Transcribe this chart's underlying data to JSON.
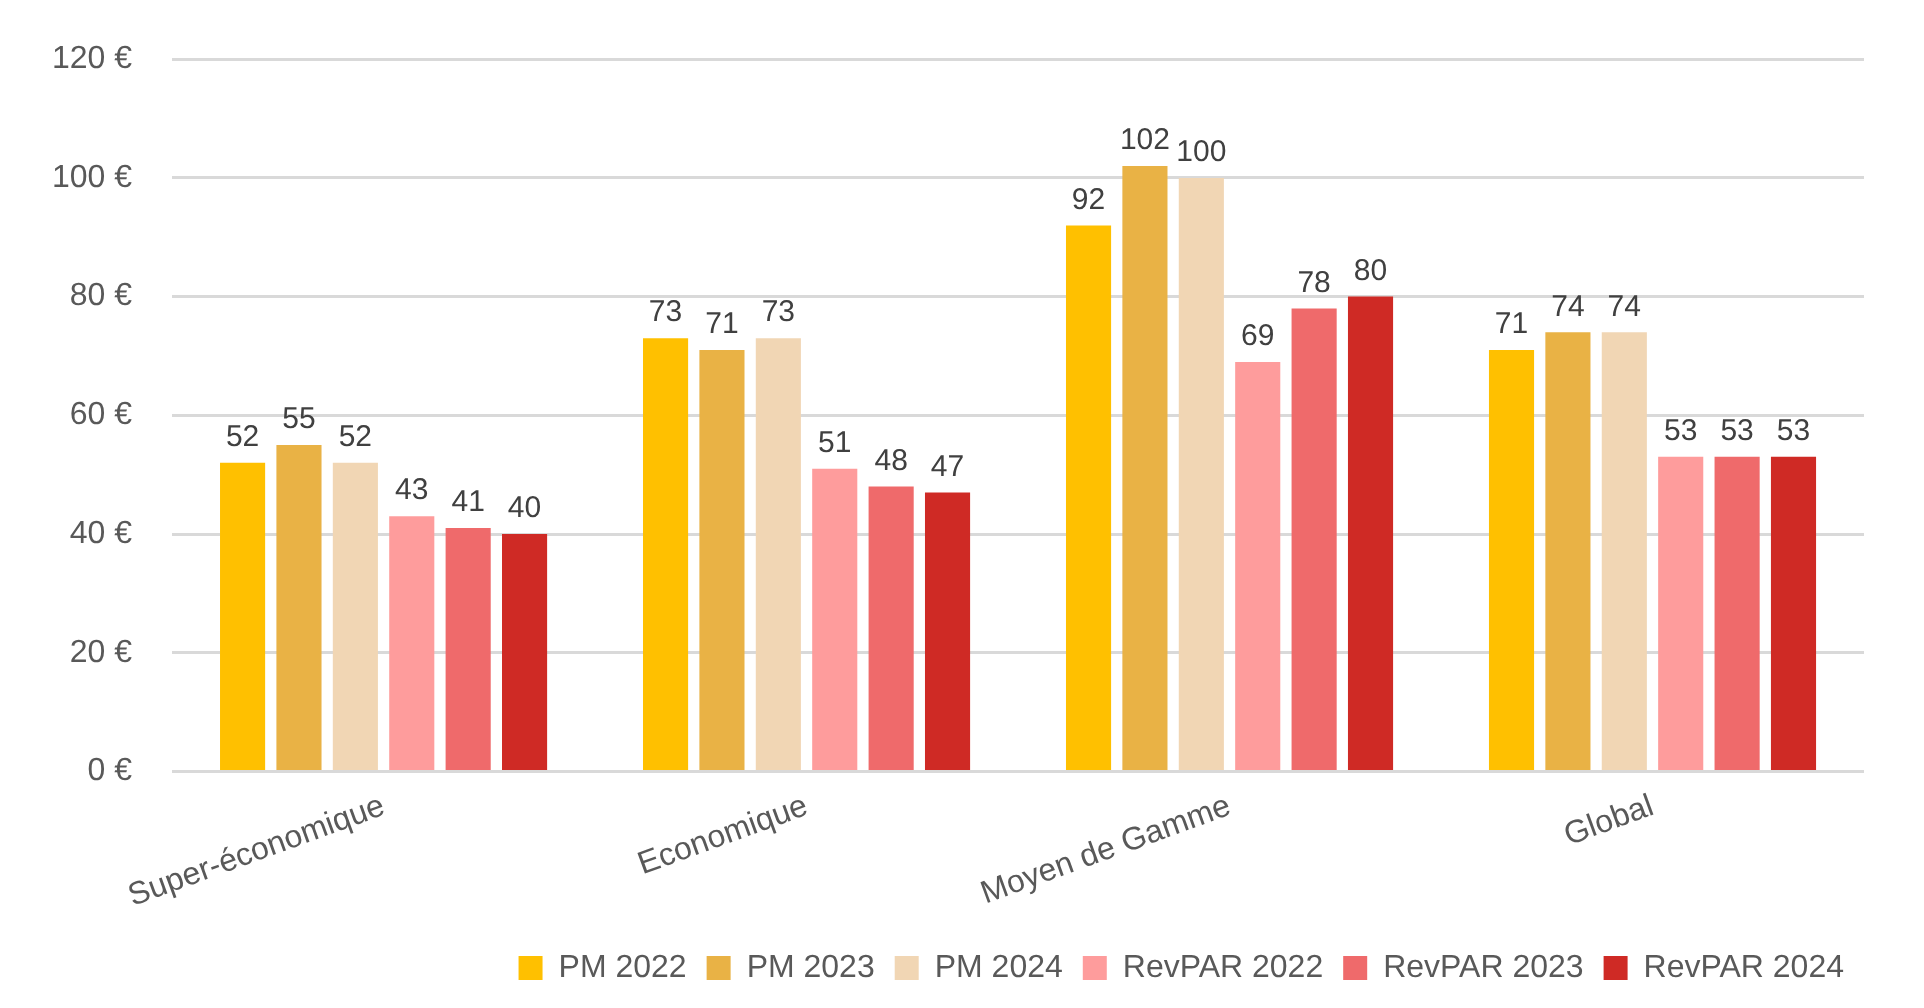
{
  "chart_data": {
    "type": "bar",
    "categories": [
      "Super-économique",
      "Economique",
      "Moyen de Gamme",
      "Global"
    ],
    "series": [
      {
        "name": "PM 2022",
        "color": "#ffc000",
        "values": [
          52,
          73,
          92,
          71
        ]
      },
      {
        "name": "PM 2023",
        "color": "#e9b245",
        "values": [
          55,
          71,
          102,
          74
        ]
      },
      {
        "name": "PM 2024",
        "color": "#f1d6b4",
        "values": [
          52,
          73,
          100,
          74
        ]
      },
      {
        "name": "RevPAR 2022",
        "color": "#fe9c9c",
        "values": [
          43,
          51,
          69,
          53
        ]
      },
      {
        "name": "RevPAR 2023",
        "color": "#ef6a6b",
        "values": [
          41,
          48,
          78,
          53
        ]
      },
      {
        "name": "RevPAR 2024",
        "color": "#cf2a25",
        "values": [
          40,
          47,
          80,
          53
        ]
      }
    ],
    "ylim": [
      0,
      120
    ],
    "yticks": [
      {
        "value": 0,
        "label": "0 €"
      },
      {
        "value": 20,
        "label": "20 €"
      },
      {
        "value": 40,
        "label": "40 €"
      },
      {
        "value": 60,
        "label": "60 €"
      },
      {
        "value": 80,
        "label": "80 €"
      },
      {
        "value": 100,
        "label": "100 €"
      },
      {
        "value": 120,
        "label": "120 €"
      }
    ],
    "grid": "y",
    "legend": "bottom",
    "data_labels": true
  }
}
